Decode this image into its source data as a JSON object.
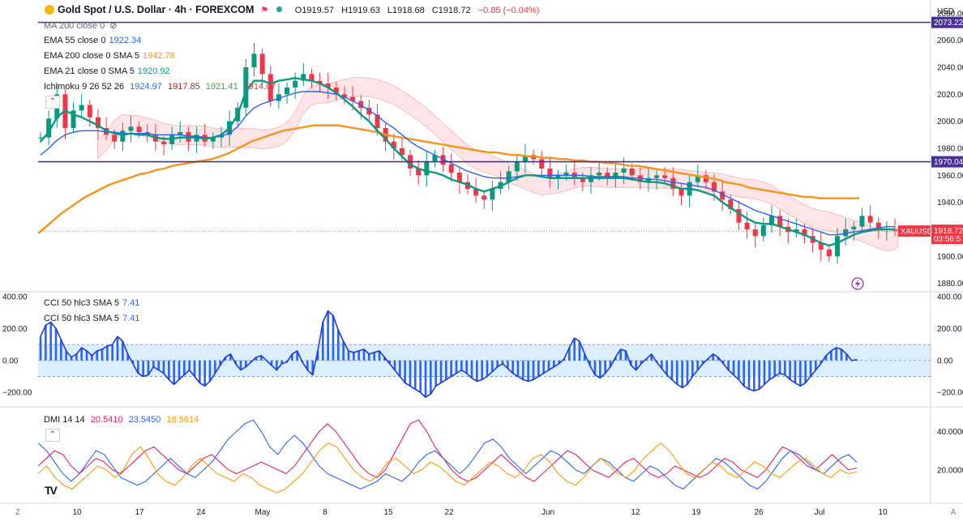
{
  "header": {
    "symbol_title": "Gold Spot / U.S. Dollar · 4h · FOREXCOM",
    "open": "O1919.57",
    "high": "H1919.63",
    "low": "L1918.68",
    "close": "C1918.72",
    "change": "−0.85 (−0.04%)",
    "currency": "USD"
  },
  "legend": {
    "ma200": {
      "label": "MA 200 close 0"
    },
    "ema55": {
      "label": "EMA 55 close 0",
      "value": "1922.34",
      "color": "#2962ff"
    },
    "ema200": {
      "label": "EMA 200 close 0 SMA 5",
      "value": "1942.78",
      "color": "#f7931a"
    },
    "ema21": {
      "label": "EMA 21 close 0 SMA 5",
      "value": "1920.92",
      "color": "#089981"
    },
    "ichimoku": {
      "label": "Ichimoku 9 26 52 26",
      "v1": "1924.97",
      "v2": "1917.85",
      "v3": "1921.41",
      "v4": "1914.07",
      "c1": "#2962ff",
      "c2": "#b71c1c",
      "c3": "#43a047",
      "c4": "#e53935"
    }
  },
  "cci_pane": {
    "label1": "CCI 50 hlc3 SMA 5",
    "value1": "7.41",
    "label2": "CCI 50 hlc3 SMA 5",
    "value2": "7.41",
    "ticks": [
      "400.00",
      "200.00",
      "0.00",
      "−200.00"
    ]
  },
  "dmi_pane": {
    "label": "DMI 14 14",
    "v1": "20.5410",
    "v2": "23.5450",
    "v3": "18.5614",
    "c1": "#e91e63",
    "c2": "#2962ff",
    "c3": "#ff9800",
    "ticks": [
      "40.0000",
      "20.0000"
    ]
  },
  "price_axis": {
    "ticks": [
      "2080.00",
      "2060.00",
      "2040.00",
      "2020.00",
      "2000.00",
      "1980.00",
      "1960.00",
      "1940.00",
      "1920.00",
      "1900.00",
      "1880.00"
    ],
    "labels": {
      "line_high": "2073.22",
      "line_low": "1970.04",
      "xauusd": "XAUUSD",
      "last_price": "1918.72",
      "countdown": "03:56:5"
    },
    "label_colors": {
      "line": "#4a2ea0",
      "last": "#f23645"
    }
  },
  "time_axis": {
    "ticks": [
      "10",
      "17",
      "24",
      "May",
      "8",
      "15",
      "22",
      "Jun",
      "12",
      "19",
      "26",
      "Jul",
      "10"
    ],
    "left_button": "Z",
    "right_button": "A"
  },
  "chart_data": [
    {
      "type": "line",
      "title": "Gold Spot / U.S. Dollar · 4h · FOREXCOM",
      "ylim": [
        1875,
        2085
      ],
      "horizontal_levels": [
        2073.22,
        1970.04
      ],
      "last_price": 1918.72,
      "x_ticks": [
        "10",
        "17",
        "24",
        "May",
        "8",
        "15",
        "22",
        "Jun",
        "12",
        "19",
        "26",
        "Jul",
        "10"
      ],
      "series": [
        {
          "name": "XAUUSD close",
          "values": [
            1988,
            2002,
            2020,
            1995,
            2008,
            2012,
            2003,
            1995,
            1990,
            1985,
            1993,
            1996,
            1992,
            1990,
            1985,
            1983,
            1990,
            1992,
            1985,
            1990,
            1985,
            1988,
            1990,
            2000,
            2010,
            2040,
            2050,
            2035,
            2015,
            2020,
            2025,
            2030,
            2035,
            2030,
            2028,
            2025,
            2020,
            2018,
            2015,
            2010,
            2005,
            1995,
            1985,
            1980,
            1975,
            1965,
            1960,
            1970,
            1975,
            1968,
            1962,
            1955,
            1950,
            1945,
            1942,
            1950,
            1955,
            1963,
            1970,
            1975,
            1972,
            1965,
            1958,
            1960,
            1962,
            1958,
            1955,
            1960,
            1962,
            1958,
            1962,
            1965,
            1960,
            1955,
            1958,
            1960,
            1958,
            1950,
            1945,
            1955,
            1960,
            1955,
            1948,
            1942,
            1935,
            1925,
            1920,
            1915,
            1923,
            1930,
            1922,
            1918,
            1920,
            1915,
            1910,
            1905,
            1900,
            1915,
            1920,
            1922,
            1930,
            1925,
            1920,
            1920,
            1919
          ]
        },
        {
          "name": "EMA 21",
          "color": "#089981",
          "values": [
            1985,
            1992,
            2003,
            2008,
            2005,
            2003,
            2000,
            1997,
            1993,
            1991,
            1990,
            1991,
            1990,
            1990,
            1988,
            1987,
            1987,
            1988,
            1988,
            1988,
            1987,
            1988,
            1990,
            1995,
            2005,
            2022,
            2030,
            2030,
            2028,
            2030,
            2031,
            2032,
            2031,
            2030,
            2028,
            2025,
            2021,
            2016,
            2011,
            2005,
            2000,
            1993,
            1987,
            1980,
            1974,
            1968,
            1965,
            1963,
            1962,
            1960,
            1957,
            1955,
            1953,
            1950,
            1948,
            1950,
            1952,
            1955,
            1958,
            1960,
            1960,
            1959,
            1958,
            1958,
            1958,
            1958,
            1958,
            1958,
            1958,
            1958,
            1958,
            1958,
            1957,
            1956,
            1955,
            1955,
            1954,
            1952,
            1950,
            1950,
            1949,
            1947,
            1945,
            1940,
            1936,
            1932,
            1928,
            1925,
            1924,
            1924,
            1922,
            1920,
            1918,
            1916,
            1913,
            1910,
            1908,
            1910,
            1913,
            1916,
            1918,
            1919,
            1920,
            1920,
            1920
          ]
        },
        {
          "name": "EMA 55",
          "color": "#2962ff",
          "values": [
            1975,
            1980,
            1986,
            1990,
            1992,
            1993,
            1993,
            1993,
            1992,
            1992,
            1991,
            1991,
            1991,
            1991,
            1990,
            1990,
            1990,
            1990,
            1989,
            1989,
            1988,
            1988,
            1989,
            1991,
            1996,
            2004,
            2010,
            2013,
            2015,
            2017,
            2019,
            2021,
            2022,
            2022,
            2022,
            2021,
            2020,
            2018,
            2015,
            2012,
            2008,
            2004,
            1999,
            1995,
            1990,
            1985,
            1981,
            1978,
            1975,
            1972,
            1969,
            1966,
            1963,
            1961,
            1959,
            1958,
            1958,
            1958,
            1959,
            1960,
            1960,
            1960,
            1960,
            1960,
            1960,
            1960,
            1960,
            1959,
            1959,
            1959,
            1959,
            1959,
            1958,
            1958,
            1957,
            1957,
            1956,
            1955,
            1954,
            1953,
            1952,
            1951,
            1949,
            1946,
            1943,
            1940,
            1937,
            1934,
            1932,
            1930,
            1928,
            1926,
            1924,
            1922,
            1920,
            1918,
            1916,
            1916,
            1917,
            1918,
            1919,
            1920,
            1921,
            1922,
            1922
          ]
        },
        {
          "name": "EMA 200",
          "color": "#f7931a",
          "values": [
            1917,
            1922,
            1927,
            1932,
            1936,
            1940,
            1944,
            1947,
            1950,
            1953,
            1955,
            1957,
            1959,
            1961,
            1962,
            1964,
            1965,
            1967,
            1968,
            1969,
            1970,
            1971,
            1972,
            1974,
            1976,
            1979,
            1982,
            1985,
            1987,
            1989,
            1991,
            1993,
            1994,
            1995,
            1996,
            1997,
            1997,
            1997,
            1997,
            1996,
            1995,
            1994,
            1993,
            1992,
            1990,
            1989,
            1988,
            1987,
            1986,
            1985,
            1984,
            1983,
            1982,
            1981,
            1980,
            1979,
            1978,
            1977,
            1977,
            1976,
            1975,
            1975,
            1974,
            1974,
            1973,
            1973,
            1972,
            1972,
            1971,
            1971,
            1970,
            1970,
            1969,
            1969,
            1968,
            1967,
            1967,
            1966,
            1965,
            1964,
            1963,
            1962,
            1961,
            1960,
            1959,
            1958,
            1957,
            1955,
            1954,
            1953,
            1951,
            1950,
            1949,
            1948,
            1947,
            1946,
            1945,
            1944,
            1944,
            1943,
            1943,
            1943,
            1943,
            1943,
            1943
          ]
        }
      ]
    },
    {
      "type": "bar",
      "title": "CCI 50 hlc3 SMA 5",
      "ylim": [
        -280,
        420
      ],
      "band": [
        100,
        -100
      ],
      "values": [
        150,
        220,
        240,
        200,
        130,
        60,
        20,
        40,
        80,
        60,
        30,
        60,
        70,
        90,
        100,
        150,
        120,
        40,
        -20,
        -80,
        -100,
        -90,
        -40,
        -60,
        -80,
        -120,
        -150,
        -120,
        -90,
        -60,
        -100,
        -140,
        -160,
        -130,
        -80,
        -30,
        20,
        40,
        -20,
        -60,
        -40,
        -10,
        20,
        30,
        0,
        -30,
        -60,
        -20,
        -10,
        40,
        60,
        -10,
        -60,
        -90,
        60,
        240,
        310,
        280,
        190,
        120,
        60,
        50,
        60,
        70,
        40,
        50,
        60,
        20,
        -20,
        -60,
        -100,
        -140,
        -160,
        -180,
        -200,
        -230,
        -210,
        -160,
        -140,
        -120,
        -100,
        -80,
        -60,
        -80,
        -110,
        -130,
        -120,
        -100,
        -70,
        -40,
        -20,
        -50,
        -80,
        -100,
        -120,
        -130,
        -120,
        -100,
        -80,
        -60,
        -40,
        -20,
        10,
        80,
        140,
        120,
        40,
        -30,
        -90,
        -110,
        -80,
        -40,
        20,
        70,
        60,
        -30,
        -60,
        -20,
        10,
        40,
        -10,
        -50,
        -90,
        -120,
        -150,
        -170,
        -150,
        -100,
        -60,
        -20,
        10,
        40,
        20,
        -20,
        -60,
        -90,
        -120,
        -160,
        -180,
        -190,
        -180,
        -150,
        -120,
        -100,
        -80,
        -90,
        -120,
        -140,
        -160,
        -140,
        -100,
        -60,
        -20,
        30,
        60,
        80,
        70,
        40,
        0,
        5
      ]
    },
    {
      "type": "line",
      "title": "DMI 14 14",
      "ylim": [
        3,
        52
      ],
      "series": [
        {
          "name": "DMI 14 14 (1)",
          "color": "#e91e63",
          "values": [
            22,
            26,
            30,
            28,
            22,
            18,
            22,
            26,
            24,
            20,
            18,
            22,
            26,
            30,
            32,
            28,
            24,
            20,
            18,
            22,
            26,
            28,
            24,
            20,
            18,
            20,
            22,
            24,
            22,
            20,
            18,
            22,
            28,
            34,
            40,
            44,
            40,
            34,
            28,
            22,
            18,
            16,
            20,
            28,
            36,
            44,
            46,
            40,
            32,
            26,
            20,
            16,
            14,
            16,
            20,
            24,
            28,
            24,
            20,
            16,
            14,
            18,
            22,
            26,
            30,
            28,
            24,
            20,
            18,
            16,
            20,
            24,
            26,
            22,
            18,
            16,
            18,
            22,
            20,
            18,
            16,
            18,
            22,
            26,
            24,
            20,
            18,
            16,
            20,
            26,
            32,
            30,
            26,
            22,
            20,
            24,
            28,
            24,
            20,
            21
          ]
        },
        {
          "name": "DMI 14 14 (2)",
          "color": "#2962ff",
          "values": [
            34,
            30,
            24,
            18,
            14,
            18,
            24,
            30,
            28,
            22,
            16,
            14,
            12,
            14,
            18,
            22,
            26,
            22,
            18,
            16,
            20,
            24,
            30,
            36,
            40,
            44,
            46,
            40,
            32,
            28,
            34,
            38,
            34,
            28,
            22,
            18,
            16,
            14,
            12,
            10,
            12,
            14,
            18,
            16,
            14,
            18,
            24,
            28,
            30,
            26,
            22,
            18,
            22,
            28,
            34,
            36,
            32,
            26,
            22,
            18,
            22,
            26,
            30,
            28,
            24,
            20,
            18,
            22,
            26,
            24,
            20,
            16,
            14,
            18,
            22,
            20,
            16,
            12,
            10,
            14,
            18,
            22,
            26,
            24,
            20,
            16,
            12,
            10,
            14,
            20,
            26,
            30,
            28,
            24,
            20,
            18,
            22,
            26,
            28,
            24
          ]
        },
        {
          "name": "DMI 14 14 (3)",
          "color": "#ff9800",
          "values": [
            18,
            22,
            16,
            12,
            10,
            14,
            18,
            22,
            20,
            16,
            20,
            28,
            32,
            26,
            18,
            14,
            12,
            16,
            22,
            26,
            22,
            18,
            16,
            14,
            18,
            16,
            12,
            10,
            8,
            10,
            14,
            18,
            24,
            30,
            34,
            32,
            26,
            20,
            16,
            14,
            18,
            24,
            26,
            22,
            18,
            20,
            24,
            22,
            18,
            14,
            12,
            16,
            20,
            24,
            22,
            18,
            16,
            20,
            26,
            28,
            24,
            18,
            14,
            12,
            16,
            22,
            26,
            22,
            18,
            16,
            20,
            26,
            30,
            34,
            30,
            24,
            18,
            16,
            20,
            24,
            22,
            18,
            16,
            20,
            24,
            22,
            18,
            16,
            20,
            24,
            26,
            22,
            18,
            16,
            20,
            18,
            19
          ]
        }
      ]
    }
  ]
}
